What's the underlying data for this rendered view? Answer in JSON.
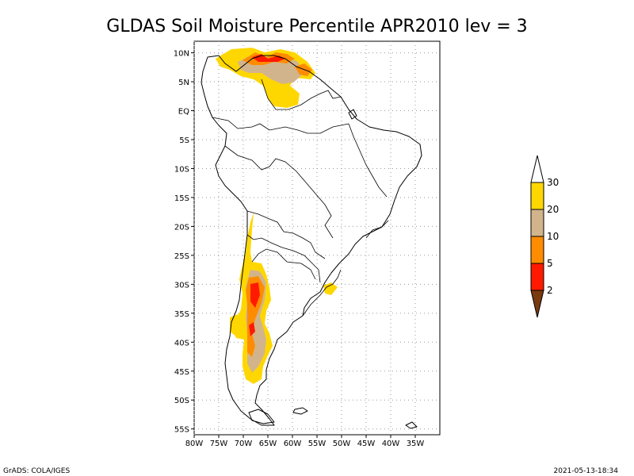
{
  "title": "GLDAS Soil Moisture Percentile APR2010 lev = 3",
  "footer": {
    "left": "GrADS: COLA/IGES",
    "right": "2021-05-13-18:34"
  },
  "map": {
    "lon_range": [
      -80,
      -30
    ],
    "lat_range": [
      -56,
      12
    ],
    "lon_ticks": [
      {
        "value": -80,
        "label": "80W"
      },
      {
        "value": -75,
        "label": "75W"
      },
      {
        "value": -70,
        "label": "70W"
      },
      {
        "value": -65,
        "label": "65W"
      },
      {
        "value": -60,
        "label": "60W"
      },
      {
        "value": -55,
        "label": "55W"
      },
      {
        "value": -50,
        "label": "50W"
      },
      {
        "value": -45,
        "label": "45W"
      },
      {
        "value": -40,
        "label": "40W"
      },
      {
        "value": -35,
        "label": "35W"
      }
    ],
    "lat_ticks": [
      {
        "value": 10,
        "label": "10N"
      },
      {
        "value": 5,
        "label": "5N"
      },
      {
        "value": 0,
        "label": "EQ"
      },
      {
        "value": -5,
        "label": "5S"
      },
      {
        "value": -10,
        "label": "10S"
      },
      {
        "value": -15,
        "label": "15S"
      },
      {
        "value": -20,
        "label": "20S"
      },
      {
        "value": -25,
        "label": "25S"
      },
      {
        "value": -30,
        "label": "30S"
      },
      {
        "value": -35,
        "label": "35S"
      },
      {
        "value": -40,
        "label": "40S"
      },
      {
        "value": -45,
        "label": "45S"
      },
      {
        "value": -50,
        "label": "50S"
      },
      {
        "value": -55,
        "label": "55S"
      }
    ],
    "grid": true,
    "colors": {
      "land": "#ffffff",
      "coast": "#000000",
      "grid": "#9a9a9a"
    }
  },
  "colorbar": {
    "labels": [
      "2",
      "5",
      "10",
      "20",
      "30"
    ],
    "bands": [
      {
        "label": "<2",
        "color": "#7a3a10"
      },
      {
        "label": "2-5",
        "color": "#ff1a00"
      },
      {
        "label": "5-10",
        "color": "#ff8c00"
      },
      {
        "label": "10-20",
        "color": "#d2b48c"
      },
      {
        "label": "20-30",
        "color": "#ffd700"
      },
      {
        "label": ">30",
        "color": "#ffffff"
      }
    ]
  }
}
